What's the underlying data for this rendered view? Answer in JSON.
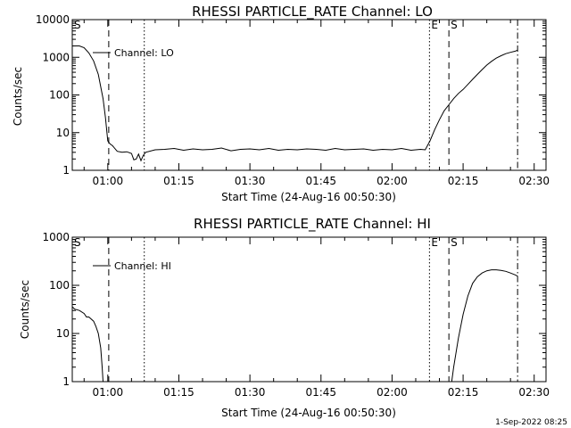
{
  "chart_data": [
    {
      "type": "line",
      "title": "RHESSI PARTICLE_RATE Channel: LO",
      "xlabel": "Start Time (24-Aug-16 00:50:30)",
      "ylabel": "Counts/sec",
      "yscale": "log",
      "ylim": [
        1,
        10000
      ],
      "xlim_minutes": [
        52.5,
        152.5
      ],
      "grid": false,
      "legend_placement": "top-left",
      "x_ticks": [
        {
          "min": 60,
          "label": "01:00"
        },
        {
          "min": 75,
          "label": "01:15"
        },
        {
          "min": 90,
          "label": "01:30"
        },
        {
          "min": 105,
          "label": "01:45"
        },
        {
          "min": 120,
          "label": "02:00"
        },
        {
          "min": 135,
          "label": "02:15"
        },
        {
          "min": 150,
          "label": "02:30"
        }
      ],
      "y_ticks": [
        {
          "value": 1,
          "label": "1"
        },
        {
          "value": 10,
          "label": "10"
        },
        {
          "value": 100,
          "label": "100"
        },
        {
          "value": 1000,
          "label": "1000"
        },
        {
          "value": 10000,
          "label": "10000"
        }
      ],
      "markers": [
        {
          "min": 52.5,
          "label": "S",
          "style": "dash"
        },
        {
          "min": 60.2,
          "label": "",
          "style": "dash"
        },
        {
          "min": 67.7,
          "label": "",
          "style": "dot"
        },
        {
          "min": 127.9,
          "label": "E",
          "style": "dot"
        },
        {
          "min": 132.0,
          "label": "S",
          "style": "dash"
        },
        {
          "min": 146.5,
          "label": "",
          "style": "dashdot"
        }
      ],
      "series": [
        {
          "name": "Channel: LO",
          "x": [
            52.5,
            54,
            55,
            56,
            57,
            58,
            59,
            59.5,
            60,
            60.5,
            61,
            62,
            63,
            64,
            65,
            65.5,
            66,
            66.5,
            67,
            67.5,
            68,
            70,
            72,
            74,
            76,
            78,
            80,
            82,
            84,
            86,
            88,
            90,
            92,
            94,
            96,
            98,
            100,
            102,
            104,
            106,
            108,
            110,
            112,
            114,
            116,
            118,
            120,
            122,
            124,
            126,
            127,
            128,
            129,
            130,
            131,
            132,
            133,
            134,
            135,
            136,
            137,
            138,
            139,
            140,
            141,
            142,
            143,
            144,
            145,
            146,
            146.5
          ],
          "y": [
            2000,
            2000,
            1800,
            1300,
            800,
            350,
            80,
            25,
            6,
            5,
            4.5,
            3.2,
            3,
            3.1,
            2.8,
            1.9,
            2,
            2.7,
            1.8,
            2.5,
            3,
            3.5,
            3.6,
            3.8,
            3.4,
            3.7,
            3.5,
            3.6,
            3.9,
            3.3,
            3.6,
            3.7,
            3.5,
            3.8,
            3.4,
            3.6,
            3.5,
            3.7,
            3.6,
            3.4,
            3.8,
            3.5,
            3.6,
            3.7,
            3.4,
            3.6,
            3.5,
            3.8,
            3.4,
            3.6,
            3.5,
            6,
            12,
            22,
            38,
            55,
            80,
            110,
            140,
            190,
            260,
            350,
            470,
            620,
            780,
            950,
            1100,
            1250,
            1350,
            1450,
            1550
          ]
        }
      ]
    },
    {
      "type": "line",
      "title": "RHESSI PARTICLE_RATE Channel: HI",
      "xlabel": "Start Time (24-Aug-16 00:50:30)",
      "ylabel": "Counts/sec",
      "yscale": "log",
      "ylim": [
        1,
        1000
      ],
      "xlim_minutes": [
        52.5,
        152.5
      ],
      "grid": false,
      "legend_placement": "top-left",
      "x_ticks": [
        {
          "min": 60,
          "label": "01:00"
        },
        {
          "min": 75,
          "label": "01:15"
        },
        {
          "min": 90,
          "label": "01:30"
        },
        {
          "min": 105,
          "label": "01:45"
        },
        {
          "min": 120,
          "label": "02:00"
        },
        {
          "min": 135,
          "label": "02:15"
        },
        {
          "min": 150,
          "label": "02:30"
        }
      ],
      "y_ticks": [
        {
          "value": 1,
          "label": "1"
        },
        {
          "value": 10,
          "label": "10"
        },
        {
          "value": 100,
          "label": "100"
        },
        {
          "value": 1000,
          "label": "1000"
        }
      ],
      "markers": [
        {
          "min": 52.5,
          "label": "S",
          "style": "dash"
        },
        {
          "min": 60.2,
          "label": "",
          "style": "dash"
        },
        {
          "min": 67.7,
          "label": "",
          "style": "dot"
        },
        {
          "min": 127.9,
          "label": "E",
          "style": "dot"
        },
        {
          "min": 132.0,
          "label": "S",
          "style": "dash"
        },
        {
          "min": 146.5,
          "label": "",
          "style": "dashdot"
        }
      ],
      "series": [
        {
          "name": "Channel: HI",
          "x": [
            52.5,
            53,
            54,
            55,
            55.5,
            56,
            57,
            57.5,
            58,
            58.5,
            58.8,
            59,
            132.6,
            133,
            134,
            135,
            136,
            137,
            138,
            139,
            140,
            141,
            142,
            143,
            144,
            145,
            146,
            146.5
          ],
          "y": [
            36,
            32,
            30,
            26,
            22,
            22,
            18,
            14,
            10,
            5,
            2,
            1,
            1,
            2,
            8,
            25,
            60,
            110,
            150,
            180,
            200,
            210,
            210,
            205,
            195,
            180,
            165,
            155
          ]
        }
      ]
    }
  ],
  "footer": {
    "timestamp": "1-Sep-2022 08:25"
  }
}
